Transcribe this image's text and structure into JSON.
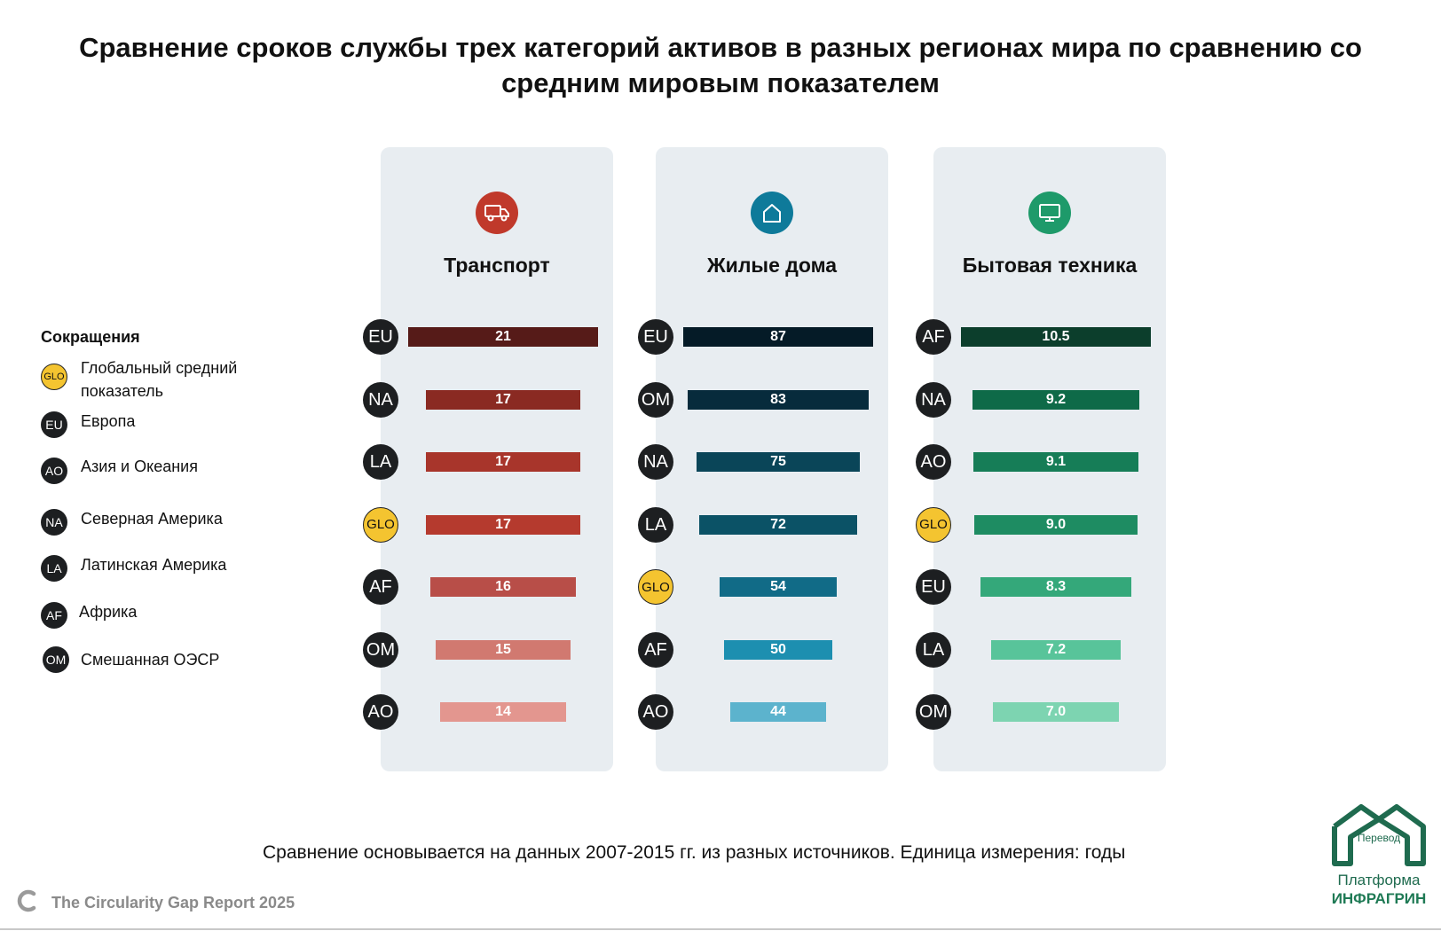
{
  "title": "Сравнение сроков службы трех категорий активов в разных регионах мира по сравнению со средним мировым показателем",
  "legend": {
    "title": "Сокращения",
    "items": [
      {
        "code": "GLO",
        "label": "Глобальный средний показатель"
      },
      {
        "code": "EU",
        "label": "Европа"
      },
      {
        "code": "AO",
        "label": "Азия и Океания"
      },
      {
        "code": "NA",
        "label": "Северная Америка"
      },
      {
        "code": "LA",
        "label": "Латинская Америка"
      },
      {
        "code": "AF",
        "label": "Африка"
      },
      {
        "code": "OM",
        "label": "Смешанная ОЭСР"
      }
    ]
  },
  "note": "Сравнение основывается на данных 2007-2015 гг. из разных источников. Единица измерения: годы",
  "source": "The Circularity Gap Report 2025",
  "brand": {
    "badge": "Перевод",
    "line1": "Платформа",
    "line2": "ИНФРАГРИН"
  },
  "colors": {
    "glo": "#f4c430",
    "badge": "#1d1f21",
    "panel": "#e8edf1",
    "transport_icon": "#c0392b",
    "housing_icon": "#0e7a9a",
    "appliances_icon": "#1e9a6a"
  },
  "chart_data": [
    {
      "type": "bar",
      "title": "Транспорт",
      "icon": "truck-icon",
      "icon_color": "#c0392b",
      "unit": "годы",
      "categories": [
        "EU",
        "NA",
        "LA",
        "GLO",
        "AF",
        "OM",
        "AO"
      ],
      "values": [
        21,
        17,
        17,
        17,
        16,
        15,
        14
      ],
      "labels": [
        "21",
        "17",
        "17",
        "17",
        "16",
        "15",
        "14"
      ],
      "colors": [
        "#561b18",
        "#8a2a22",
        "#a8352b",
        "#b53a2e",
        "#b84e48",
        "#d17970",
        "#e3968f"
      ]
    },
    {
      "type": "bar",
      "title": "Жилые дома",
      "icon": "house-icon",
      "icon_color": "#0e7a9a",
      "unit": "годы",
      "categories": [
        "EU",
        "OM",
        "NA",
        "LA",
        "GLO",
        "AF",
        "AO"
      ],
      "values": [
        87,
        83,
        75,
        72,
        54,
        50,
        44
      ],
      "labels": [
        "87",
        "83",
        "75",
        "72",
        "54",
        "50",
        "44"
      ],
      "colors": [
        "#051b27",
        "#072b3c",
        "#0a4558",
        "#0b5266",
        "#116b87",
        "#1d8fb0",
        "#5cb3cd"
      ]
    },
    {
      "type": "bar",
      "title": "Бытовая техника",
      "icon": "monitor-icon",
      "icon_color": "#1e9a6a",
      "unit": "годы",
      "categories": [
        "AF",
        "NA",
        "AO",
        "GLO",
        "EU",
        "LA",
        "OM"
      ],
      "values": [
        10.5,
        9.2,
        9.1,
        9.0,
        8.3,
        7.2,
        7.0
      ],
      "labels": [
        "10.5",
        "9.2",
        "9.1",
        "9.0",
        "8.3",
        "7.2",
        "7.0"
      ],
      "colors": [
        "#0c3e2c",
        "#0e6a48",
        "#167d57",
        "#1e8c62",
        "#34a87a",
        "#58c49a",
        "#7dd4b1"
      ]
    }
  ]
}
